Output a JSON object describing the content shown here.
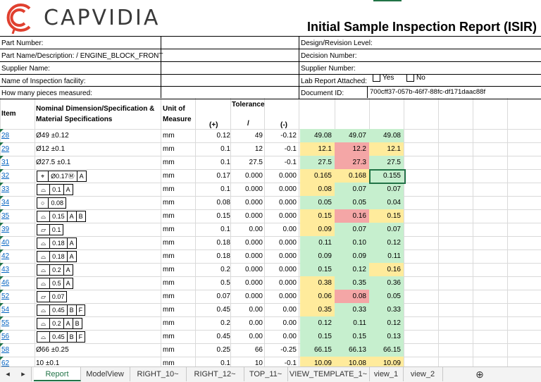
{
  "logo": {
    "brand": "CAPVIDIA"
  },
  "report_title": "Initial Sample Inspection Report (ISIR)",
  "form": {
    "part_number": "Part Number:",
    "part_name": "Part Name/Description: / ENGINE_BLOCK_FRONT",
    "supplier_name": "Supplier Name:",
    "inspection_facility": "Name of Inspection facility:",
    "pieces_measured": "How many pieces measured:",
    "design_revision": "Design/Revision Level:",
    "decision_number": "Decision Number:",
    "supplier_number": "Supplier Number:",
    "lab_report": "Lab Report Attached:",
    "lab_yes": "Yes",
    "lab_no": "No",
    "document_id_label": "Document ID:",
    "document_id": "700cff37-057b-46f7-88fc-df171daac88f"
  },
  "table_header": {
    "item": "Item",
    "nominal_line1": "Nominal Dimension/Specification &",
    "nominal_line2": "Material Specifications",
    "unit_line1": "Unit of",
    "unit_line2": "Measure",
    "tolerance": "Tolerance",
    "plus": "(+)",
    "slash": "/",
    "minus": "(-)"
  },
  "rows": [
    {
      "item": "28",
      "nominal": "Ø49  ±0.12",
      "unit": "mm",
      "plus": "0.12",
      "mid": "49",
      "minus": "-0.12",
      "m1": "49.08",
      "m2": "49.07",
      "m3": "49.08",
      "c1": "g",
      "c2": "g",
      "c3": "g"
    },
    {
      "item": "29",
      "nominal": "Ø12  ±0.1",
      "unit": "mm",
      "plus": "0.1",
      "mid": "12",
      "minus": "-0.1",
      "m1": "12.1",
      "m2": "12.2",
      "m3": "12.1",
      "c1": "y",
      "c2": "r",
      "c3": "y"
    },
    {
      "item": "31",
      "nominal": "Ø27.5  ±0.1",
      "unit": "mm",
      "plus": "0.1",
      "mid": "27.5",
      "minus": "-0.1",
      "m1": "27.5",
      "m2": "27.3",
      "m3": "27.5",
      "c1": "g",
      "c2": "r",
      "c3": "g"
    },
    {
      "item": "32",
      "fcf": [
        "⌖",
        "Ø0.17Ⓜ",
        "A"
      ],
      "unit": "mm",
      "plus": "0.17",
      "mid": "0.000",
      "minus": "0.000",
      "m1": "0.165",
      "m2": "0.168",
      "m3": "0.155",
      "c1": "y",
      "c2": "y",
      "c3": "g"
    },
    {
      "item": "33",
      "fcf": [
        "⌓",
        "0.1",
        "A"
      ],
      "unit": "mm",
      "plus": "0.1",
      "mid": "0.000",
      "minus": "0.000",
      "m1": "0.08",
      "m2": "0.07",
      "m3": "0.07",
      "c1": "y",
      "c2": "g",
      "c3": "g"
    },
    {
      "item": "34",
      "fcf": [
        "○",
        "0.08"
      ],
      "unit": "mm",
      "plus": "0.08",
      "mid": "0.000",
      "minus": "0.000",
      "m1": "0.05",
      "m2": "0.05",
      "m3": "0.04",
      "c1": "g",
      "c2": "g",
      "c3": "g"
    },
    {
      "item": "35",
      "fcf": [
        "⌓",
        "0.15",
        "A",
        "B"
      ],
      "unit": "mm",
      "plus": "0.15",
      "mid": "0.000",
      "minus": "0.000",
      "m1": "0.15",
      "m2": "0.16",
      "m3": "0.15",
      "c1": "y",
      "c2": "r",
      "c3": "y"
    },
    {
      "item": "39",
      "fcf": [
        "▱",
        "0.1"
      ],
      "unit": "mm",
      "plus": "0.1",
      "mid": "0.00",
      "minus": "0.00",
      "m1": "0.09",
      "m2": "0.07",
      "m3": "0.07",
      "c1": "y",
      "c2": "g",
      "c3": "g"
    },
    {
      "item": "40",
      "fcf": [
        "⌓",
        "0.18",
        "A"
      ],
      "unit": "mm",
      "plus": "0.18",
      "mid": "0.000",
      "minus": "0.000",
      "m1": "0.11",
      "m2": "0.10",
      "m3": "0.12",
      "c1": "g",
      "c2": "g",
      "c3": "g"
    },
    {
      "item": "42",
      "fcf": [
        "⌓",
        "0.18",
        "A"
      ],
      "unit": "mm",
      "plus": "0.18",
      "mid": "0.000",
      "minus": "0.000",
      "m1": "0.09",
      "m2": "0.09",
      "m3": "0.11",
      "c1": "g",
      "c2": "g",
      "c3": "g"
    },
    {
      "item": "43",
      "fcf": [
        "⌓",
        "0.2",
        "A"
      ],
      "unit": "mm",
      "plus": "0.2",
      "mid": "0.000",
      "minus": "0.000",
      "m1": "0.15",
      "m2": "0.12",
      "m3": "0.16",
      "c1": "g",
      "c2": "g",
      "c3": "y"
    },
    {
      "item": "46",
      "fcf": [
        "⌓",
        "0.5",
        "A"
      ],
      "unit": "mm",
      "plus": "0.5",
      "mid": "0.000",
      "minus": "0.000",
      "m1": "0.38",
      "m2": "0.35",
      "m3": "0.36",
      "c1": "y",
      "c2": "g",
      "c3": "g"
    },
    {
      "item": "52",
      "fcf": [
        "▱",
        "0.07"
      ],
      "unit": "mm",
      "plus": "0.07",
      "mid": "0.000",
      "minus": "0.000",
      "m1": "0.06",
      "m2": "0.08",
      "m3": "0.05",
      "c1": "y",
      "c2": "r",
      "c3": "g"
    },
    {
      "item": "54",
      "fcf": [
        "⌓",
        "0.45",
        "B",
        "F"
      ],
      "unit": "mm",
      "plus": "0.45",
      "mid": "0.00",
      "minus": "0.00",
      "m1": "0.35",
      "m2": "0.33",
      "m3": "0.33",
      "c1": "y",
      "c2": "g",
      "c3": "g"
    },
    {
      "item": "55",
      "fcf": [
        "⌓",
        "0.2",
        "A",
        "B"
      ],
      "unit": "mm",
      "plus": "0.2",
      "mid": "0.00",
      "minus": "0.00",
      "m1": "0.12",
      "m2": "0.11",
      "m3": "0.12",
      "c1": "g",
      "c2": "g",
      "c3": "g"
    },
    {
      "item": "56",
      "fcf": [
        "⌓",
        "0.45",
        "B",
        "F"
      ],
      "unit": "mm",
      "plus": "0.45",
      "mid": "0.00",
      "minus": "0.00",
      "m1": "0.15",
      "m2": "0.15",
      "m3": "0.13",
      "c1": "g",
      "c2": "g",
      "c3": "g"
    },
    {
      "item": "58",
      "nominal": "Ø66  ±0.25",
      "unit": "mm",
      "plus": "0.25",
      "mid": "66",
      "minus": "-0.25",
      "m1": "66.15",
      "m2": "66.13",
      "m3": "66.15",
      "c1": "g",
      "c2": "g",
      "c3": "g"
    },
    {
      "item": "62",
      "nominal": "10  ±0.1",
      "unit": "mm",
      "plus": "0.1",
      "mid": "10",
      "minus": "-0.1",
      "m1": "10.09",
      "m2": "10.08",
      "m3": "10.09",
      "c1": "y",
      "c2": "y",
      "c3": "y"
    }
  ],
  "sheet_tabs": [
    "Report",
    "ModelView",
    "RIGHT_10~",
    "RIGHT_12~",
    "TOP_11~",
    "VIEW_TEMPLATE_1~",
    "view_1",
    "view_2"
  ],
  "nav": {
    "prev": "◂",
    "next": "▸",
    "add": "⊕"
  }
}
